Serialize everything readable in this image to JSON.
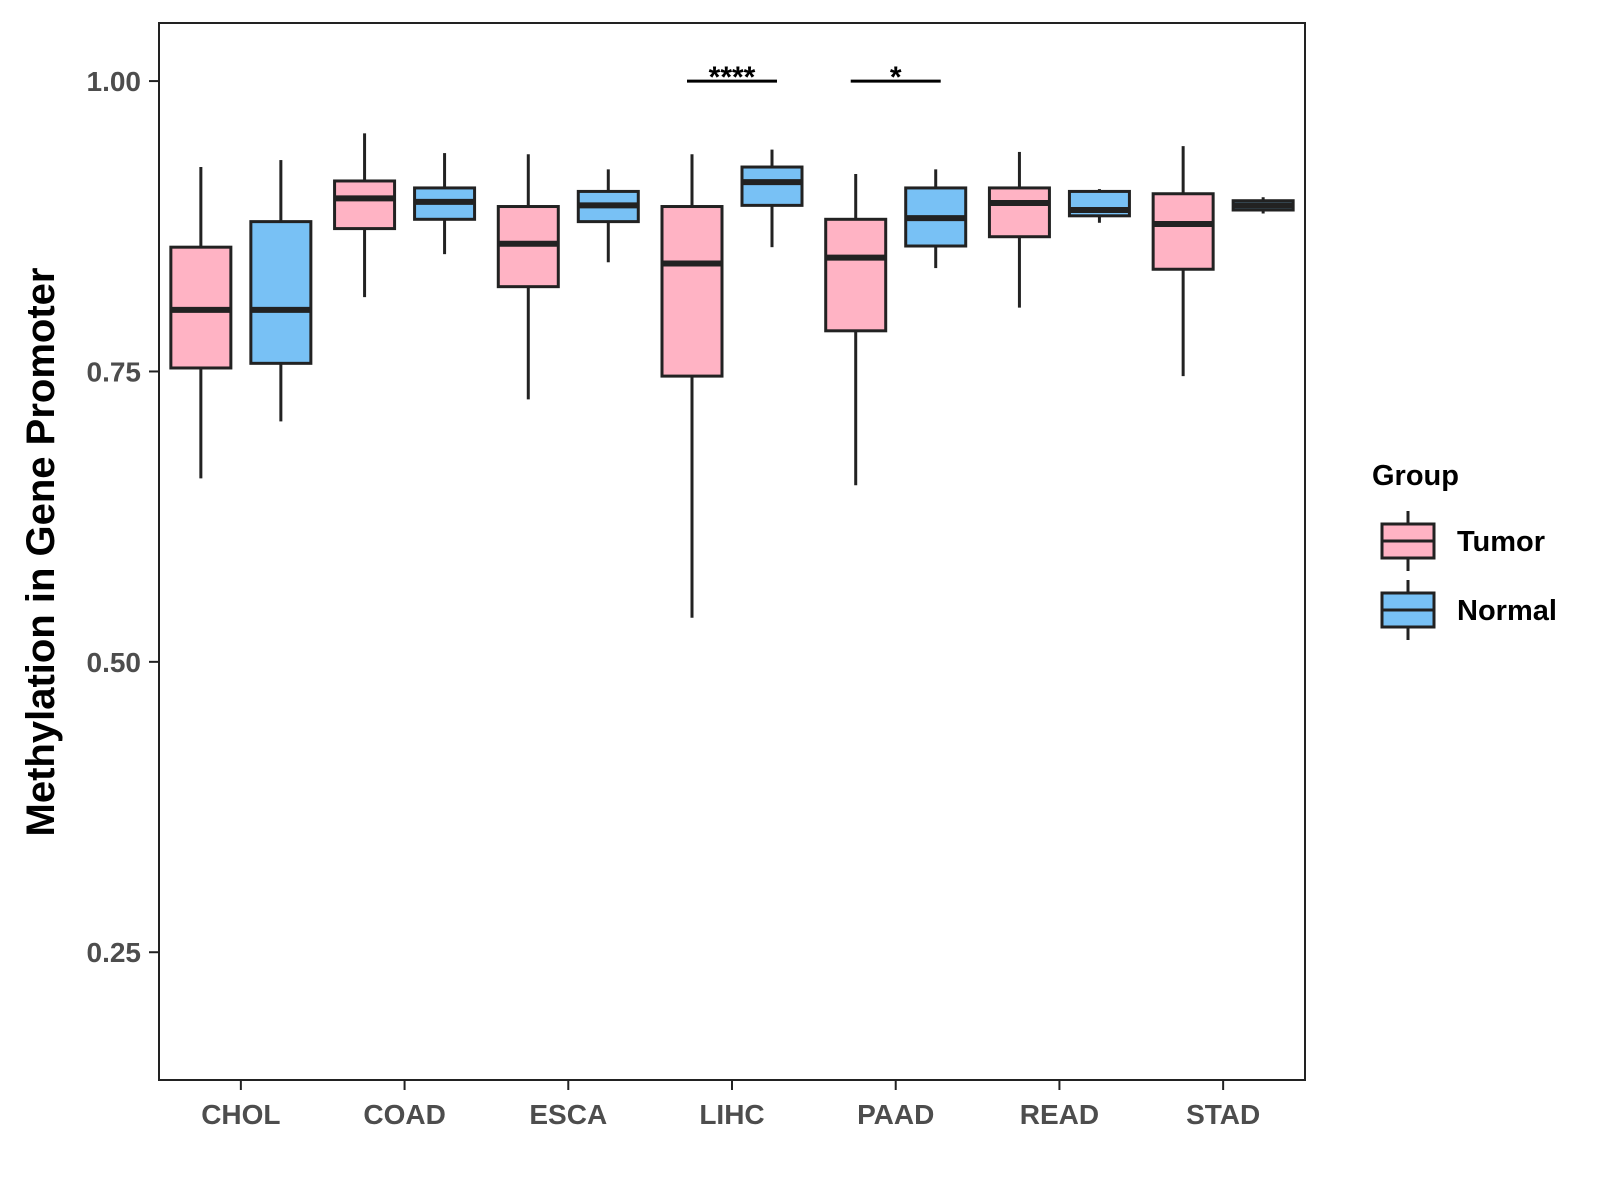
{
  "chart_data": {
    "type": "boxplot",
    "title": "",
    "xlabel": "",
    "ylabel": "Methylation in Gene Promoter",
    "ylim": [
      0.14,
      1.05
    ],
    "yticks": [
      0.25,
      0.5,
      0.75,
      1.0
    ],
    "ytick_labels": [
      "0.25",
      "0.50",
      "0.75",
      "1.00"
    ],
    "categories": [
      "CHOL",
      "COAD",
      "ESCA",
      "LIHC",
      "PAAD",
      "READ",
      "STAD"
    ],
    "legend": {
      "title": "Group",
      "position": "right",
      "entries": [
        {
          "name": "Tumor",
          "color": "#FFB3C4"
        },
        {
          "name": "Normal",
          "color": "#78C1F5"
        }
      ]
    },
    "series": [
      {
        "name": "Tumor",
        "color": "#FFB3C4",
        "boxes": [
          {
            "category": "CHOL",
            "min": 0.658,
            "q1": 0.753,
            "median": 0.803,
            "q3": 0.857,
            "max": 0.926
          },
          {
            "category": "COAD",
            "min": 0.814,
            "q1": 0.873,
            "median": 0.899,
            "q3": 0.914,
            "max": 0.955
          },
          {
            "category": "ESCA",
            "min": 0.726,
            "q1": 0.823,
            "median": 0.86,
            "q3": 0.892,
            "max": 0.937
          },
          {
            "category": "LIHC",
            "min": 0.538,
            "q1": 0.746,
            "median": 0.843,
            "q3": 0.892,
            "max": 0.937
          },
          {
            "category": "PAAD",
            "min": 0.652,
            "q1": 0.785,
            "median": 0.848,
            "q3": 0.881,
            "max": 0.92
          },
          {
            "category": "READ",
            "min": 0.805,
            "q1": 0.866,
            "median": 0.895,
            "q3": 0.908,
            "max": 0.939
          },
          {
            "category": "STAD",
            "min": 0.746,
            "q1": 0.838,
            "median": 0.877,
            "q3": 0.903,
            "max": 0.944
          }
        ]
      },
      {
        "name": "Normal",
        "color": "#78C1F5",
        "boxes": [
          {
            "category": "CHOL",
            "min": 0.707,
            "q1": 0.757,
            "median": 0.803,
            "q3": 0.879,
            "max": 0.932
          },
          {
            "category": "COAD",
            "min": 0.851,
            "q1": 0.881,
            "median": 0.896,
            "q3": 0.908,
            "max": 0.938
          },
          {
            "category": "ESCA",
            "min": 0.844,
            "q1": 0.879,
            "median": 0.893,
            "q3": 0.905,
            "max": 0.924
          },
          {
            "category": "LIHC",
            "min": 0.857,
            "q1": 0.893,
            "median": 0.913,
            "q3": 0.926,
            "max": 0.941
          },
          {
            "category": "PAAD",
            "min": 0.839,
            "q1": 0.858,
            "median": 0.882,
            "q3": 0.908,
            "max": 0.924
          },
          {
            "category": "READ",
            "min": 0.878,
            "q1": 0.884,
            "median": 0.889,
            "q3": 0.905,
            "max": 0.907
          },
          {
            "category": "STAD",
            "min": 0.886,
            "q1": 0.889,
            "median": 0.893,
            "q3": 0.897,
            "max": 0.9
          }
        ]
      }
    ],
    "annotations": [
      {
        "category": "LIHC",
        "label": "****",
        "y": 1.0
      },
      {
        "category": "PAAD",
        "label": "*",
        "y": 1.0
      }
    ],
    "grid": false
  }
}
